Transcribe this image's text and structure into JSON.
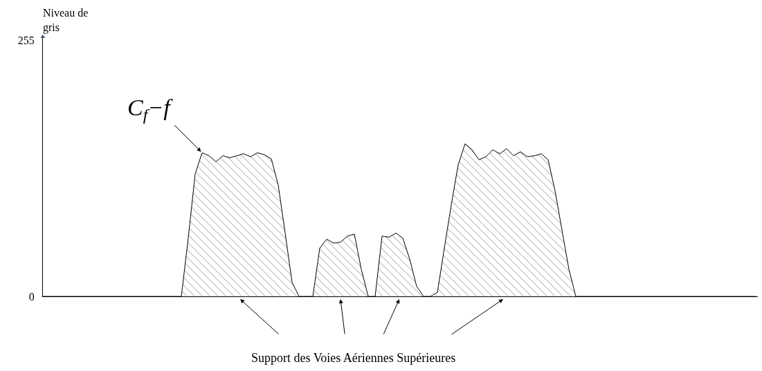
{
  "chart_data": {
    "type": "area",
    "ylabel": "Niveau de gris",
    "categories": [
      null,
      null,
      null,
      null,
      null,
      null,
      null,
      null,
      null,
      null,
      null,
      null,
      null,
      null,
      null,
      null,
      null,
      null,
      null,
      null,
      null,
      null,
      null,
      null,
      null,
      null,
      null,
      null,
      null,
      null,
      null,
      null,
      null,
      null,
      null,
      null,
      null,
      null,
      null,
      null,
      null,
      null,
      null,
      null,
      null,
      null,
      null,
      null,
      null,
      null,
      null,
      null,
      null,
      null,
      null,
      null,
      null,
      null,
      null,
      null,
      null,
      null,
      null,
      null,
      null,
      null,
      null,
      null,
      null,
      null,
      null,
      null,
      null,
      null,
      null,
      null,
      null,
      null,
      null,
      null,
      null,
      null,
      null,
      null,
      null,
      null,
      null,
      null,
      null,
      null,
      null,
      null,
      null,
      null,
      null,
      null,
      null,
      null,
      null,
      null,
      null,
      null,
      null,
      null
    ],
    "series": [
      {
        "color": "#000000",
        "values": [
          0,
          0,
          0,
          0,
          0,
          0,
          0,
          0,
          0,
          0,
          0,
          0,
          0,
          0,
          0,
          0,
          0,
          0,
          0,
          0,
          0,
          58,
          122,
          143,
          140,
          134,
          140,
          138,
          140,
          142,
          139,
          143,
          141,
          137,
          111,
          63,
          14,
          0,
          0,
          0,
          48,
          57,
          53,
          54,
          60,
          62,
          27,
          0,
          0,
          60,
          59,
          63,
          58,
          37,
          10,
          0,
          0,
          4,
          48,
          91,
          131,
          152,
          146,
          136,
          139,
          146,
          142,
          147,
          140,
          144,
          139,
          140,
          142,
          136,
          105,
          66,
          27,
          0,
          0,
          0,
          0,
          0,
          0,
          0,
          0,
          0,
          0,
          0,
          0,
          0,
          0,
          0,
          0,
          0,
          0,
          0,
          0,
          0,
          0,
          0,
          0,
          0,
          0,
          0
        ]
      }
    ],
    "ylim": [
      0,
      260
    ],
    "yticks": [
      0,
      255
    ],
    "annotations": [
      "C$_{f}$−f",
      "Support des Voies Aériennes Supérieures"
    ]
  }
}
